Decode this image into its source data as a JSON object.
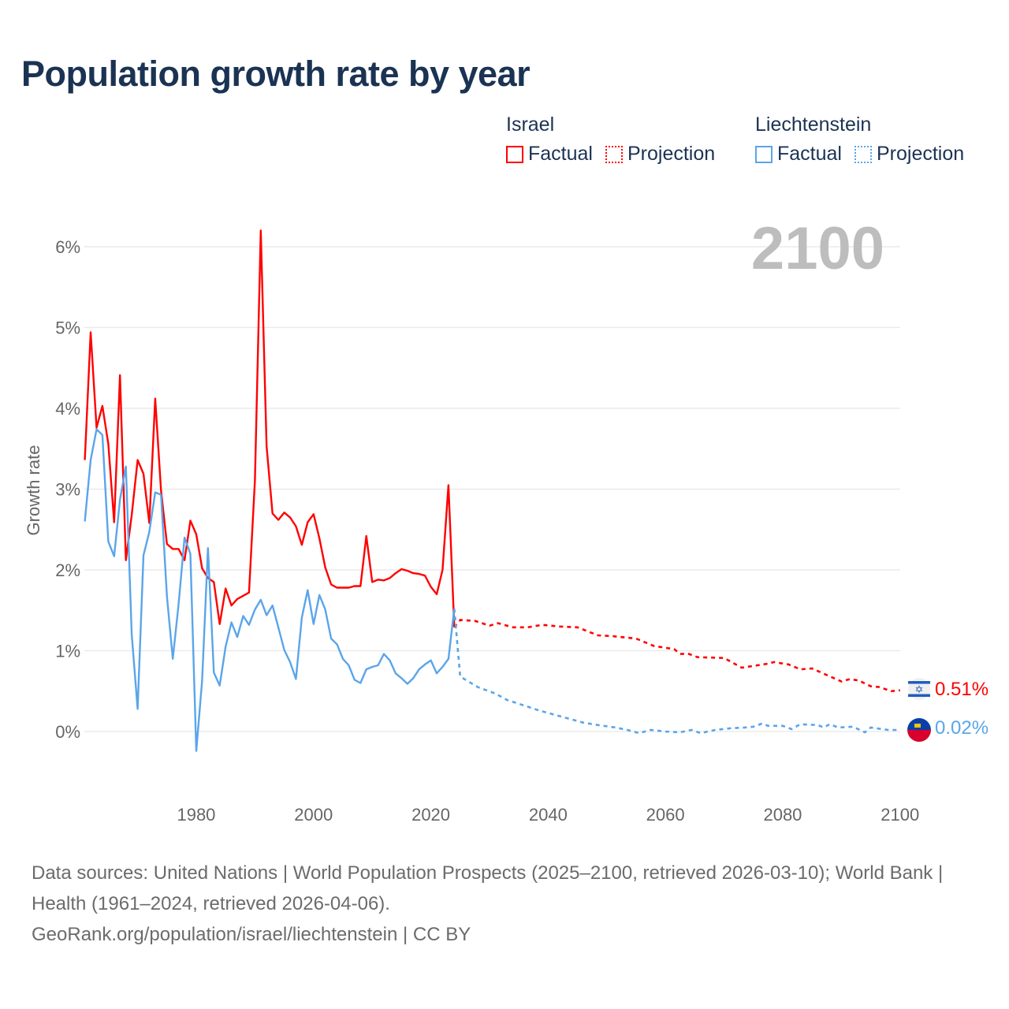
{
  "title": "Population growth rate by year",
  "current_year": "2100",
  "legend": {
    "groups": [
      {
        "name": "Israel",
        "color": "#ff0000",
        "factual": "Factual",
        "projection": "Projection"
      },
      {
        "name": "Liechtenstein",
        "color": "#5aa5ea",
        "factual": "Factual",
        "projection": "Projection"
      }
    ]
  },
  "chart_data": {
    "type": "line",
    "title": "Population growth rate by year",
    "xlabel": "",
    "ylabel": "Growth rate",
    "xlim": [
      1961,
      2100
    ],
    "ylim": [
      -0.8,
      6.6
    ],
    "x_ticks": [
      1980,
      2000,
      2020,
      2040,
      2060,
      2080,
      2100
    ],
    "x_tick_labels": [
      "1980",
      "2000",
      "2020",
      "2040",
      "2060",
      "2080",
      "2100"
    ],
    "y_ticks": [
      0,
      1,
      2,
      3,
      4,
      5,
      6
    ],
    "y_tick_labels": [
      "0%",
      "1%",
      "2%",
      "3%",
      "4%",
      "5%",
      "6%"
    ],
    "grid": true,
    "legend_position": "top-right",
    "series": [
      {
        "name": "Israel",
        "color": "#ff0000",
        "end_label": "0.51%",
        "factual": {
          "start_year": 1961,
          "values": [
            3.36,
            4.94,
            3.76,
            4.03,
            3.56,
            2.59,
            4.41,
            2.12,
            2.68,
            3.36,
            3.19,
            2.58,
            4.12,
            2.98,
            2.32,
            2.26,
            2.26,
            2.12,
            2.61,
            2.44,
            2.02,
            1.9,
            1.85,
            1.33,
            1.77,
            1.56,
            1.64,
            1.68,
            1.72,
            3.11,
            6.2,
            3.53,
            2.7,
            2.62,
            2.71,
            2.65,
            2.54,
            2.31,
            2.59,
            2.69,
            2.39,
            2.03,
            1.82,
            1.78,
            1.78,
            1.78,
            1.8,
            1.8,
            2.42,
            1.85,
            1.88,
            1.87,
            1.9,
            1.96,
            2.01,
            1.99,
            1.96,
            1.95,
            1.93,
            1.79,
            1.7,
            2.0,
            3.05,
            1.29
          ]
        },
        "projection": {
          "years": [
            2024,
            2025,
            2027.5,
            2030,
            2031.5,
            2034,
            2036.5,
            2039,
            2042,
            2045,
            2048.5,
            2051,
            2055,
            2058,
            2061.5,
            2062.5,
            2064,
            2065.5,
            2070,
            2073,
            2077.5,
            2078.5,
            2081,
            2083,
            2085,
            2087.5,
            2090,
            2091.5,
            2093,
            2095,
            2096.5,
            2098.5,
            2100
          ],
          "values": [
            1.29,
            1.38,
            1.37,
            1.31,
            1.34,
            1.29,
            1.29,
            1.32,
            1.3,
            1.29,
            1.19,
            1.18,
            1.15,
            1.06,
            1.02,
            0.96,
            0.96,
            0.92,
            0.91,
            0.79,
            0.84,
            0.86,
            0.83,
            0.77,
            0.78,
            0.7,
            0.62,
            0.65,
            0.63,
            0.56,
            0.55,
            0.5,
            0.51
          ]
        }
      },
      {
        "name": "Liechtenstein",
        "color": "#5aa5ea",
        "end_label": "0.02%",
        "factual": {
          "start_year": 1961,
          "values": [
            2.6,
            3.36,
            3.74,
            3.67,
            2.35,
            2.17,
            2.87,
            3.28,
            1.2,
            0.28,
            2.18,
            2.47,
            2.96,
            2.93,
            1.67,
            0.9,
            1.58,
            2.4,
            2.2,
            -0.24,
            0.63,
            2.27,
            0.73,
            0.57,
            1.05,
            1.35,
            1.17,
            1.43,
            1.32,
            1.51,
            1.63,
            1.44,
            1.56,
            1.29,
            1.01,
            0.86,
            0.65,
            1.41,
            1.75,
            1.33,
            1.69,
            1.51,
            1.15,
            1.08,
            0.9,
            0.82,
            0.64,
            0.6,
            0.77,
            0.8,
            0.82,
            0.96,
            0.88,
            0.72,
            0.66,
            0.59,
            0.66,
            0.77,
            0.83,
            0.88,
            0.72,
            0.8,
            0.9,
            1.52
          ]
        },
        "projection": {
          "years": [
            2024,
            2025,
            2028,
            2031,
            2033,
            2036,
            2038.5,
            2041,
            2043.5,
            2046,
            2048.5,
            2051.5,
            2053.5,
            2055.5,
            2057.5,
            2060,
            2062.5,
            2064.5,
            2066,
            2068.5,
            2071,
            2073.5,
            2075,
            2076.5,
            2077.5,
            2080,
            2081.5,
            2083,
            2086,
            2087,
            2088,
            2089.5,
            2092,
            2094,
            2095,
            2098,
            2100
          ],
          "values": [
            1.52,
            0.68,
            0.55,
            0.47,
            0.39,
            0.32,
            0.26,
            0.21,
            0.16,
            0.11,
            0.08,
            0.05,
            0.02,
            -0.02,
            0.02,
            0.0,
            -0.01,
            0.02,
            -0.02,
            0.02,
            0.04,
            0.05,
            0.06,
            0.1,
            0.07,
            0.07,
            0.03,
            0.09,
            0.08,
            0.05,
            0.09,
            0.05,
            0.06,
            -0.01,
            0.05,
            0.02,
            0.02
          ]
        }
      }
    ]
  },
  "footer": {
    "sources": "Data sources: United Nations | World Population Prospects (2025–2100, retrieved 2026-03-10); World Bank | Health (1961–2024, retrieved 2026-04-06).",
    "credit": "GeoRank.org/population/israel/liechtenstein | CC BY"
  }
}
